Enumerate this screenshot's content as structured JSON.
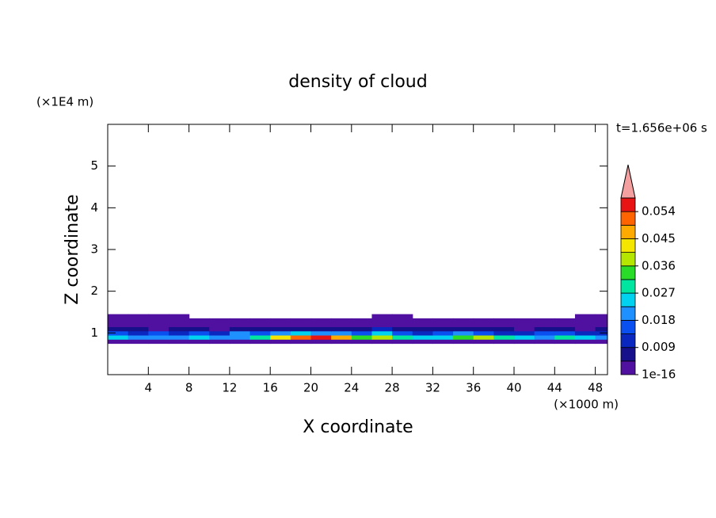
{
  "chart_data": {
    "type": "contour",
    "title": "density of cloud",
    "x_label": "X coordinate",
    "x_unit": "(×1000 m)",
    "y_label": "Z coordinate",
    "y_unit": "(×1E4 m)",
    "time_label": "t=1.656e+06 s",
    "xlim": [
      0,
      49.2
    ],
    "ylim": [
      0,
      6
    ],
    "xticks": [
      4,
      8,
      12,
      16,
      20,
      24,
      28,
      32,
      36,
      40,
      44,
      48
    ],
    "yticks": [
      1,
      2,
      3,
      4,
      5
    ],
    "x": [
      1,
      3,
      5,
      7,
      9,
      11,
      13,
      15,
      17,
      19,
      21,
      23,
      25,
      27,
      29,
      31,
      33,
      35,
      37,
      39,
      41,
      43,
      45,
      47,
      49
    ],
    "y": [
      0.8,
      0.9,
      1.0,
      1.1,
      1.2,
      1.3,
      1.4
    ],
    "z": [
      [
        0.002,
        0.003,
        0.002,
        0.002,
        0.003,
        0.002,
        0.002,
        0.003,
        0.003,
        0.004,
        0.003,
        0.002,
        0.002,
        0.003,
        0.003,
        0.002,
        0.002,
        0.003,
        0.003,
        0.002,
        0.002,
        0.003,
        0.003,
        0.002,
        0.002
      ],
      [
        0.024,
        0.022,
        0.018,
        0.02,
        0.026,
        0.022,
        0.02,
        0.028,
        0.042,
        0.05,
        0.056,
        0.046,
        0.032,
        0.038,
        0.03,
        0.024,
        0.026,
        0.034,
        0.036,
        0.028,
        0.026,
        0.022,
        0.03,
        0.026,
        0.02
      ],
      [
        0.014,
        0.012,
        0.016,
        0.012,
        0.014,
        0.01,
        0.018,
        0.016,
        0.022,
        0.026,
        0.02,
        0.018,
        0.016,
        0.024,
        0.014,
        0.012,
        0.016,
        0.018,
        0.014,
        0.012,
        0.01,
        0.014,
        0.016,
        0.012,
        0.01
      ],
      [
        0.006,
        0.005,
        0.004,
        0.006,
        0.005,
        0.004,
        0.007,
        0.008,
        0.006,
        0.007,
        0.005,
        0.006,
        0.008,
        0.009,
        0.006,
        0.005,
        0.006,
        0.007,
        0.005,
        0.006,
        0.004,
        0.005,
        0.006,
        0.004,
        0.005
      ],
      [
        0.003,
        0.003,
        0.002,
        0.003,
        0.002,
        0.003,
        0.004,
        0.003,
        0.003,
        0.004,
        0.003,
        0.003,
        0.004,
        0.003,
        0.003,
        0.002,
        0.003,
        0.003,
        0.002,
        0.003,
        0.003,
        0.002,
        0.003,
        0.003,
        0.002
      ],
      [
        0.002,
        0.002,
        0.001,
        0.002,
        0.002,
        0.002,
        0.002,
        0.002,
        0.001,
        0.002,
        0.002,
        0.002,
        0.002,
        0.002,
        0.002,
        0.002,
        0.002,
        0.002,
        0.002,
        0.001,
        0.002,
        0.002,
        0.002,
        0.002,
        0.002
      ],
      [
        0.001,
        0.001,
        0.001,
        0.001,
        0,
        0,
        0,
        0,
        0,
        0,
        0,
        0,
        0,
        0.001,
        0.001,
        0,
        0,
        0,
        0,
        0,
        0,
        0,
        0,
        0.001,
        0.001
      ]
    ],
    "levels": [
      1e-16,
      0.0045,
      0.009,
      0.0135,
      0.018,
      0.0225,
      0.027,
      0.0315,
      0.036,
      0.0405,
      0.045,
      0.0495,
      0.054,
      0.0585
    ],
    "colors": [
      "#5010a0",
      "#16108a",
      "#0a28c0",
      "#0a50f0",
      "#1e90ff",
      "#00d2f0",
      "#00e6a0",
      "#28dc28",
      "#b4e600",
      "#f5e600",
      "#ffaa00",
      "#ff6400",
      "#e81414"
    ],
    "extend_color": "#f4a0a0",
    "colorbar_ticks": [
      1e-16,
      0.009,
      0.018,
      0.027,
      0.036,
      0.045,
      0.054
    ]
  }
}
